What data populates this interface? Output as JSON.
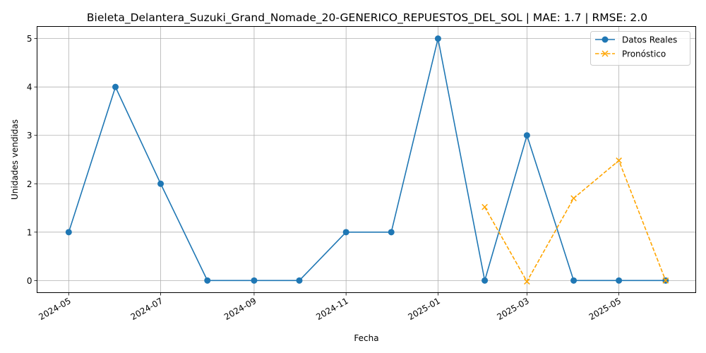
{
  "chart_data": {
    "type": "line",
    "title": "Bieleta_Delantera_Suzuki_Grand_Nomade_20-GENERICO_REPUESTOS_DEL_SOL | MAE: 1.7 | RMSE: 2.0",
    "xlabel": "Fecha",
    "ylabel": "Unidades vendidas",
    "xlim": [
      "2024-04-10",
      "2025-06-21"
    ],
    "ylim": [
      -0.25,
      5.25
    ],
    "grid": true,
    "legend_position": "top-right",
    "x_ticks": [
      "2024-05-01",
      "2024-07-01",
      "2024-09-01",
      "2024-11-01",
      "2025-01-01",
      "2025-03-01",
      "2025-05-01"
    ],
    "x_tick_labels": [
      "2024-05",
      "2024-07",
      "2024-09",
      "2024-11",
      "2025-01",
      "2025-03",
      "2025-05"
    ],
    "y_ticks": [
      0,
      1,
      2,
      3,
      4,
      5
    ],
    "series": [
      {
        "name": "Datos Reales",
        "color": "#1f77b4",
        "linestyle": "solid",
        "marker": "circle",
        "x": [
          "2024-05-01",
          "2024-06-01",
          "2024-07-01",
          "2024-08-01",
          "2024-09-01",
          "2024-10-01",
          "2024-11-01",
          "2024-12-01",
          "2025-01-01",
          "2025-02-01",
          "2025-03-01",
          "2025-04-01",
          "2025-05-01",
          "2025-06-01"
        ],
        "y": [
          1,
          4,
          2,
          0,
          0,
          0,
          1,
          1,
          5,
          0,
          3,
          0,
          0,
          0
        ]
      },
      {
        "name": "Pronóstico",
        "color": "#ffa500",
        "linestyle": "dashed",
        "marker": "x",
        "x": [
          "2025-02-01",
          "2025-03-01",
          "2025-04-01",
          "2025-05-01",
          "2025-06-01"
        ],
        "y": [
          1.52,
          -0.02,
          1.7,
          2.48,
          0.0
        ]
      }
    ]
  }
}
